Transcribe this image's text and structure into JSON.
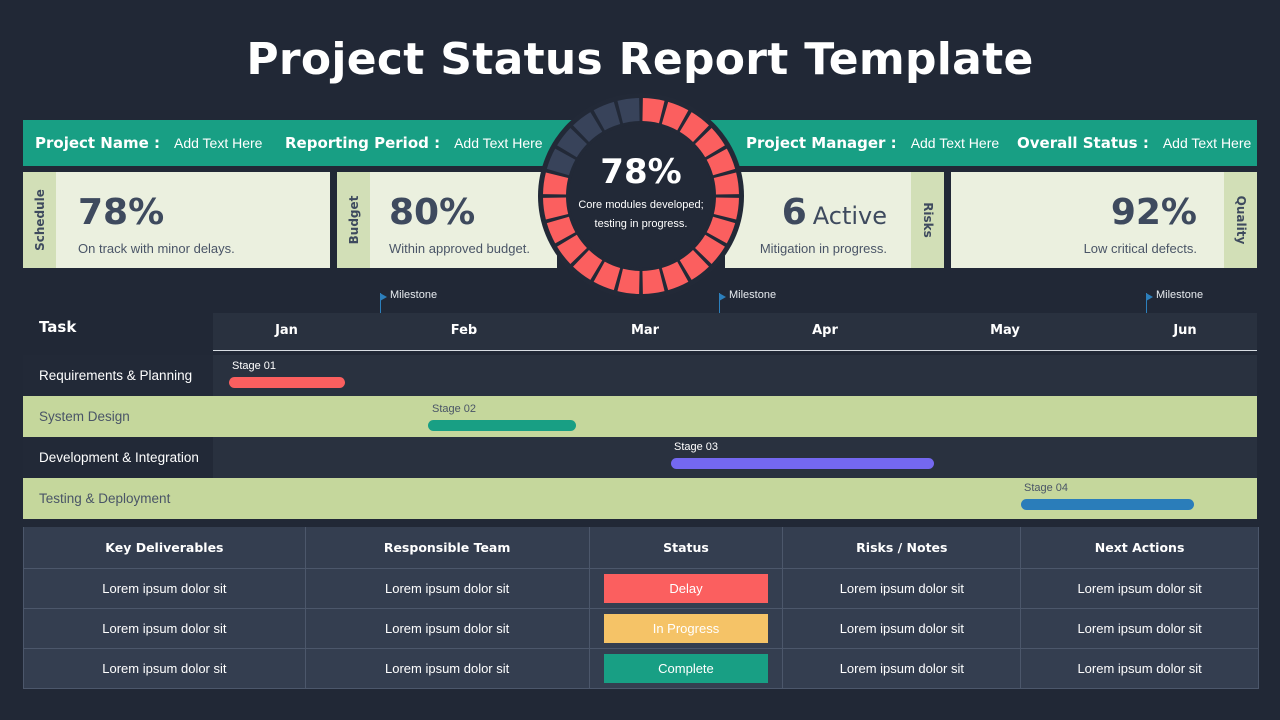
{
  "title": "Project Status Report Template",
  "info_bar": {
    "items": [
      {
        "label": "Project Name :",
        "value": "Add Text Here"
      },
      {
        "label": "Reporting Period :",
        "value": "Add Text Here"
      },
      {
        "label": "Project Manager :",
        "value": "Add Text Here"
      },
      {
        "label": "Overall Status :",
        "value": "Add Text Here"
      }
    ]
  },
  "kpis": {
    "schedule": {
      "tab": "Schedule",
      "value": "78%",
      "desc": "On track with minor delays."
    },
    "budget": {
      "tab": "Budget",
      "value": "80%",
      "desc": "Within approved budget."
    },
    "risks": {
      "tab": "Risks",
      "value": "6",
      "unit": "Active",
      "desc": "Mitigation in progress."
    },
    "quality": {
      "tab": "Quality",
      "value": "92%",
      "desc": "Low critical defects."
    }
  },
  "progress": {
    "percent": "78%",
    "desc_line1": "Core modules developed;",
    "desc_line2": "testing in progress.",
    "segments_total": 24,
    "segments_filled": 19,
    "filled_color": "#fb5f5f",
    "empty_color": "#38435a"
  },
  "gantt": {
    "task_header": "Task",
    "months": [
      "Jan",
      "Feb",
      "Mar",
      "Apr",
      "May",
      "Jun"
    ],
    "milestones": [
      {
        "label": "Milestone"
      },
      {
        "label": "Milestone"
      },
      {
        "label": "Milestone"
      }
    ],
    "tasks": [
      {
        "name": "Requirements & Planning",
        "stage": "Stage 01",
        "color": "#fb5f5f"
      },
      {
        "name": "System Design",
        "stage": "Stage 02",
        "color": "#189f84"
      },
      {
        "name": "Development & Integration",
        "stage": "Stage 03",
        "color": "#7468f0"
      },
      {
        "name": "Testing & Deployment",
        "stage": "Stage 04",
        "color": "#2a7dba"
      }
    ]
  },
  "table": {
    "headers": [
      "Key Deliverables",
      "Responsible Team",
      "Status",
      "Risks / Notes",
      "Next Actions"
    ],
    "rows": [
      {
        "deliverable": "Lorem ipsum dolor sit",
        "team": "Lorem ipsum dolor sit",
        "status": "Delay",
        "status_color": "#fb5f5f",
        "risks": "Lorem ipsum dolor sit",
        "next": "Lorem ipsum dolor sit"
      },
      {
        "deliverable": "Lorem ipsum dolor sit",
        "team": "Lorem ipsum dolor sit",
        "status": "In Progress",
        "status_color": "#f5c367",
        "risks": "Lorem ipsum dolor sit",
        "next": "Lorem ipsum dolor sit"
      },
      {
        "deliverable": "Lorem ipsum dolor sit",
        "team": "Lorem ipsum dolor sit",
        "status": "Complete",
        "status_color": "#189f84",
        "risks": "Lorem ipsum dolor sit",
        "next": "Lorem ipsum dolor sit"
      }
    ]
  }
}
